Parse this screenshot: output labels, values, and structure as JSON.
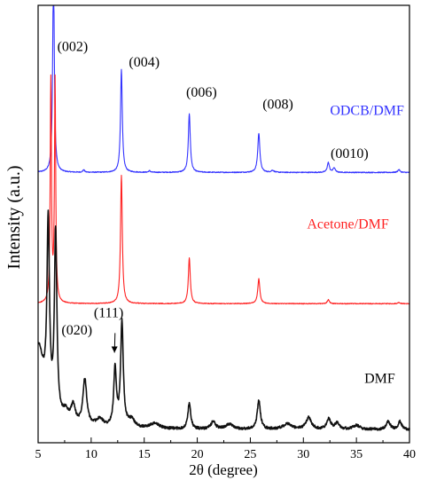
{
  "chart_data": {
    "type": "line",
    "title": "",
    "xlabel": "2θ (degree)",
    "ylabel": "Intensity (a.u.)",
    "xlim": [
      5,
      40
    ],
    "x_ticks": [
      "5",
      "10",
      "15",
      "20",
      "25",
      "30",
      "35",
      "40"
    ],
    "y_ticks": "none",
    "grid": false,
    "legend": "none",
    "series": [
      {
        "name": "ODCB/DMF",
        "color": "#3333ff",
        "offset": 200,
        "clip_top": 100,
        "baseline": 2,
        "noise": 0.35,
        "peaks": [
          {
            "x": 6.45,
            "h": 160,
            "w": 0.09
          },
          {
            "x": 9.3,
            "h": 1.8,
            "w": 0.1
          },
          {
            "x": 12.85,
            "h": 79,
            "w": 0.1
          },
          {
            "x": 15.5,
            "h": 1.2,
            "w": 0.1
          },
          {
            "x": 19.25,
            "h": 45,
            "w": 0.11
          },
          {
            "x": 25.8,
            "h": 30,
            "w": 0.12
          },
          {
            "x": 27.1,
            "h": 1.5,
            "w": 0.15
          },
          {
            "x": 32.35,
            "h": 7.5,
            "w": 0.12
          },
          {
            "x": 32.9,
            "h": 3.5,
            "w": 0.12
          },
          {
            "x": 39.0,
            "h": 2.2,
            "w": 0.12
          }
        ]
      },
      {
        "name": "Acetone/DMF",
        "color": "#ff2020",
        "offset": 100,
        "clip_top": 0,
        "baseline": 1.5,
        "noise": 0.3,
        "peaks": [
          {
            "x": 6.2,
            "h": 170,
            "w": 0.07
          },
          {
            "x": 6.6,
            "h": 170,
            "w": 0.07
          },
          {
            "x": 12.85,
            "h": 98,
            "w": 0.1
          },
          {
            "x": 19.25,
            "h": 35,
            "w": 0.11
          },
          {
            "x": 25.8,
            "h": 19,
            "w": 0.12
          },
          {
            "x": 32.35,
            "h": 3,
            "w": 0.12
          },
          {
            "x": 39.0,
            "h": 1,
            "w": 0.12
          }
        ]
      },
      {
        "name": "DMF",
        "color": "#111111",
        "offset": 0,
        "clip_top": 0,
        "baseline": 5,
        "noise": 1.0,
        "peaks": [
          {
            "x": 5.0,
            "h": 62,
            "w": 0.7
          },
          {
            "x": 5.95,
            "h": 140,
            "w": 0.14
          },
          {
            "x": 6.65,
            "h": 140,
            "w": 0.14
          },
          {
            "x": 7.6,
            "h": 8,
            "w": 0.35
          },
          {
            "x": 8.3,
            "h": 14,
            "w": 0.25
          },
          {
            "x": 9.4,
            "h": 36,
            "w": 0.22
          },
          {
            "x": 10.8,
            "h": 6,
            "w": 0.45
          },
          {
            "x": 12.25,
            "h": 44,
            "w": 0.15
          },
          {
            "x": 12.9,
            "h": 80,
            "w": 0.15
          },
          {
            "x": 13.8,
            "h": 6,
            "w": 0.4
          },
          {
            "x": 16.0,
            "h": 4,
            "w": 0.6
          },
          {
            "x": 19.25,
            "h": 20,
            "w": 0.16
          },
          {
            "x": 21.5,
            "h": 6,
            "w": 0.25
          },
          {
            "x": 23.0,
            "h": 4,
            "w": 0.4
          },
          {
            "x": 25.8,
            "h": 22,
            "w": 0.18
          },
          {
            "x": 28.5,
            "h": 4,
            "w": 0.5
          },
          {
            "x": 30.5,
            "h": 9,
            "w": 0.3
          },
          {
            "x": 32.4,
            "h": 8,
            "w": 0.22
          },
          {
            "x": 33.2,
            "h": 5,
            "w": 0.25
          },
          {
            "x": 35.0,
            "h": 3,
            "w": 0.4
          },
          {
            "x": 38.0,
            "h": 6,
            "w": 0.22
          },
          {
            "x": 39.1,
            "h": 6,
            "w": 0.2
          }
        ]
      }
    ],
    "annotations": [
      {
        "text": "(002)",
        "x": 8.25,
        "y": 295,
        "color": "#000000"
      },
      {
        "text": "(004)",
        "x": 15.0,
        "y": 283,
        "color": "#000000"
      },
      {
        "text": "(006)",
        "x": 20.4,
        "y": 260,
        "color": "#000000"
      },
      {
        "text": "(008)",
        "x": 27.6,
        "y": 251,
        "color": "#000000"
      },
      {
        "text": "(0010)",
        "x": 34.35,
        "y": 213,
        "color": "#000000"
      },
      {
        "text": "ODCB/DMF",
        "x": 36.0,
        "y": 246,
        "color": "#3333ff"
      },
      {
        "text": "Acetone/DMF",
        "x": 34.2,
        "y": 159,
        "color": "#ff2020"
      },
      {
        "text": "(111)",
        "x": 11.65,
        "y": 91,
        "color": "#000000"
      },
      {
        "text": "(020)",
        "x": 8.65,
        "y": 78,
        "color": "#000000"
      },
      {
        "text": "DMF",
        "x": 37.2,
        "y": 41,
        "color": "#000000"
      }
    ],
    "arrow": {
      "from_x": 12.25,
      "from_y": 79,
      "to_x": 12.2,
      "to_y": 64
    }
  }
}
